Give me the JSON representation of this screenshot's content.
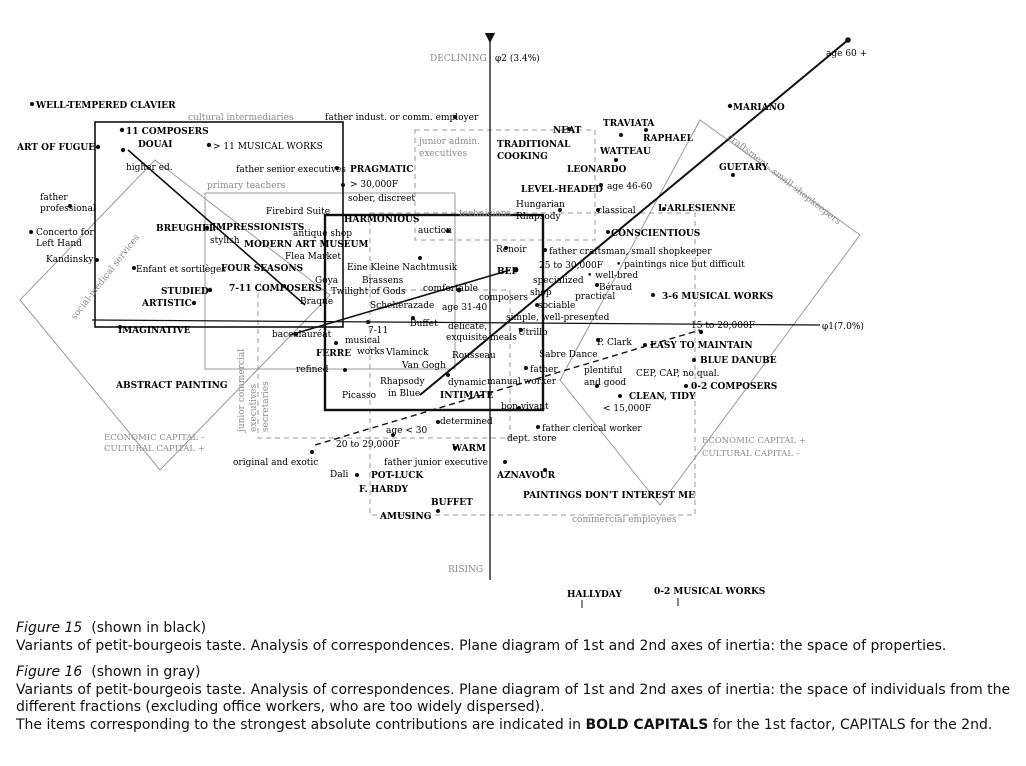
{
  "axes": {
    "top": "DECLINING",
    "axis2": "φ2 (3.4%)",
    "bottom": "RISING",
    "axis1": "φ1(7.0%)"
  },
  "quadrants": {
    "left": [
      "ECONOMIC CAPITAL –",
      "CULTURAL CAPITAL +"
    ],
    "right": [
      "ECONOMIC CAPITAL +",
      "CULTURAL CAPITAL –"
    ]
  },
  "groups": {
    "cultural_intermediaries": "cultural intermediaries",
    "primary_teachers": "primary teachers",
    "junior_admin": [
      "junior admin.",
      "executives"
    ],
    "technicians": "technicians",
    "craftsmen": "craftsmen – small shopkeepers",
    "social_medical": "social-medical services",
    "junior_commercial": [
      "junior commercial",
      "executives",
      "secretaries"
    ],
    "commercial_employees": "commercial employees"
  },
  "labels": {
    "well_tempered": "WELL-TEMPERED CLAVIER",
    "composers_11": "11 COMPOSERS",
    "douai": "DOUAI",
    "art_of_fugue": "ART OF FUGUE",
    "musical_works_11": "> 11 MUSICAL WORKS",
    "higher_ed": "higher ed.",
    "father_senior": "father senior executives",
    "father_professional": [
      "father",
      "professional"
    ],
    "concerto": [
      "Concerto for",
      "Left Hand"
    ],
    "kandinsky": "Kandinsky",
    "breughel": "BREUGHEL",
    "impressionists": "IMPRESSIONISTS",
    "stylish": "stylish",
    "modern_art": "MODERN ART MUSEUM",
    "enfant": "Enfant et sortilèges",
    "four_seasons": "FOUR SEASONS",
    "firebird": "Firebird Suite",
    "antique_shop": "antique shop",
    "flea_market": "Flea Market",
    "goya": "Goya",
    "studied": "STUDIED",
    "artistic": "ARTISTIC",
    "composers_7_11": "7-11 COMPOSERS",
    "braque": "Braque",
    "imaginative": "IMAGINATIVE",
    "baccalaureat": "baccalauréat",
    "abstract": "ABSTRACT PAINTING",
    "father_indust": "father indust. or comm. employer",
    "pragmatic": "PRAGMATIC",
    "f30000": "> 30,000F",
    "sober": "sober, discreet",
    "harmonious": "HARMONIOUS",
    "auction": "auction",
    "kleine": "Eine Kleine Nachtmusik",
    "brassens": "Brassens",
    "twilight": "Twilight of Gods",
    "comfortable": "comfortable",
    "scheherazade": "Scheherazade",
    "age_3140": "age 31-40",
    "works_7_11": "7-11",
    "musical_works": [
      "musical",
      "works"
    ],
    "buffet_top": "Buffet",
    "ferre": "FERRE",
    "vlaminck": "Vlaminck",
    "van_gogh": "Van Gogh",
    "refined": "refined",
    "rhapsody": [
      "Rhapsody",
      "in Blue"
    ],
    "picasso": "Picasso",
    "delicate": "delicate,",
    "exquisite": "exquisite meals",
    "rousseau": "Rousseau",
    "dynamic": "dynamic",
    "intimate": "INTIMATE",
    "determined": "determined",
    "age_30": "age < 30",
    "f20_29": "20 to 29,000F",
    "original": "original and exotic",
    "dali": "Dali",
    "pot_luck": "POT-LUCK",
    "f_hardy": "F. HARDY",
    "amusing": "AMUSING",
    "buffet": "BUFFET",
    "warm": "WARM",
    "father_junior": "father junior executive",
    "traditional": [
      "TRADITIONAL",
      "COOKING"
    ],
    "neat": "NEAT",
    "traviata": "TRAVIATA",
    "raphael": "RAPHAEL",
    "watteau": "WATTEAU",
    "leonardo": "LEONARDO",
    "level_headed": "LEVEL-HEADED",
    "age_4660": "age 46-60",
    "mariano": "MARIANO",
    "guetary": "GUETARY",
    "age_60": "age 60 +",
    "hungarian": [
      "Hungarian",
      "Rhapsody"
    ],
    "classical": "classical",
    "arlesienne": "L'ARLESIENNE",
    "conscientious": "CONSCIENTIOUS",
    "renoir": "Renoir",
    "father_craftsman": "father craftsman, small shopkeeper",
    "bep": "BEP",
    "f25_30": "25 to 30,000F",
    "specialized": "specialized",
    "shop": "shop",
    "well_bred": "• well-bred",
    "paintings_nice": "• paintings nice but difficult",
    "beraud": "Béraud",
    "practical": "practical",
    "sociable": "sociable",
    "composers_word": "composers",
    "simple": "simple, well-presented",
    "utrillo": "Utrillo",
    "musical_36": "3-6 MUSICAL WORKS",
    "f15_20": "15 to 20,000F",
    "p_clark": "P. Clark",
    "easy": "EASY TO MAINTAIN",
    "blue_danube": "BLUE DANUBE",
    "sabre": "Sabre Dance",
    "father_word": "father",
    "manual_worker": "manual worker",
    "plentiful": [
      "plentiful",
      "and good"
    ],
    "cep": "CEP, CAP, no qual.",
    "composers_02": "0-2 COMPOSERS",
    "clean": "CLEAN, TIDY",
    "f15000": "< 15,000F",
    "bon_vivant": "bon vivant",
    "father_clerical": "father clerical worker",
    "dept_store": "dept. store",
    "aznavour": "AZNAVOUR",
    "paintings_dont": "PAINTINGS DON'T INTEREST ME",
    "hallyday": "HALLYDAY",
    "musical_02": "0-2 MUSICAL WORKS"
  },
  "caption": {
    "fig15_title": "Figure 15",
    "fig15_note": "(shown in black)",
    "fig15_text": "Variants of petit-bourgeois taste. Analysis of correspondences. Plane diagram of 1st and 2nd axes of inertia: the space of properties.",
    "fig16_title": "Figure 16",
    "fig16_note": "(shown in gray)",
    "fig16_text": "Variants of petit-bourgeois taste. Analysis of correspondences. Plane diagram of 1st and 2nd axes of inertia: the space of individuals from the different fractions (excluding office workers, who are too widely dispersed).",
    "legend_pre": "The items corresponding to the strongest absolute contributions are indicated in ",
    "legend_bold": "BOLD CAPITALS",
    "legend_mid": " for the 1st factor, CAPITALS for the 2nd."
  },
  "colors": {
    "ink": "#111111",
    "gray": "#8a8a8a"
  }
}
